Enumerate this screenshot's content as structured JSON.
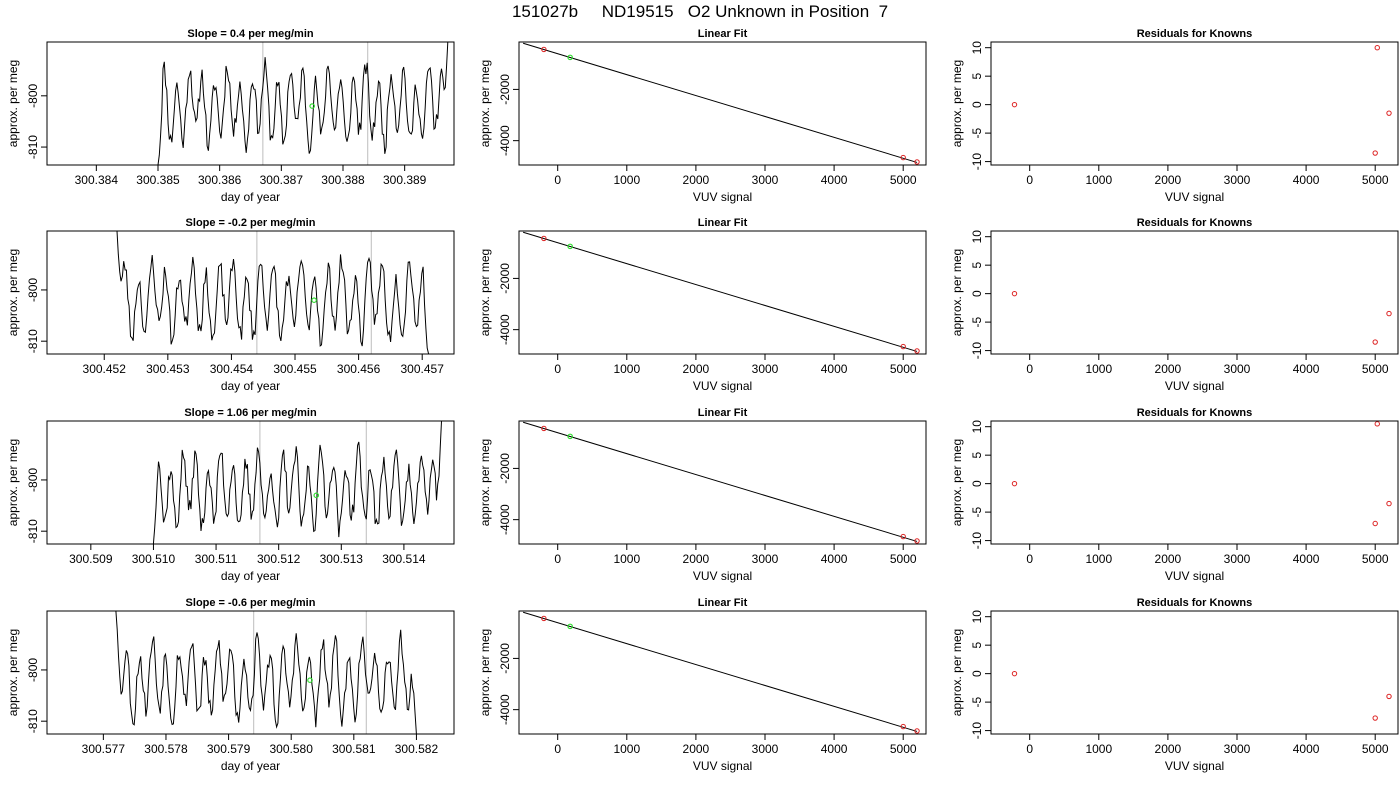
{
  "title": "151027b     ND19515   O2 Unknown in Position  7",
  "colors": {
    "trace": "#000000",
    "marker_green": "#33dd33",
    "marker_red": "#dd2222",
    "vline": "#c8c8c8",
    "fit_line": "#000000"
  },
  "chart_data": [
    {
      "type": "line",
      "row": 0,
      "col": 0,
      "title": "Slope =  0.4  per meg/min",
      "xlabel": "day of year",
      "ylabel": "approx. per meg",
      "xlim": [
        300.3832,
        300.3898
      ],
      "ylim": [
        -813.5,
        -789.5
      ],
      "xticks": [
        300.384,
        300.385,
        300.386,
        300.387,
        300.388,
        300.389
      ],
      "xtick_labels": [
        "300.384",
        "300.385",
        "300.386",
        "300.387",
        "300.388",
        "300.389"
      ],
      "yticks": [
        -800,
        -810
      ],
      "ytick_labels": [
        "-800",
        "-810"
      ],
      "trace_x_range": [
        300.385,
        300.3897
      ],
      "trace_start": -813.5,
      "trace_end": -789.5,
      "trace_seed": 11,
      "vlines": [
        300.3867,
        300.3884
      ],
      "marker": {
        "x": 300.3875,
        "y": -802.0
      }
    },
    {
      "type": "line",
      "row": 0,
      "col": 1,
      "title": "Linear Fit",
      "xlabel": "VUV signal",
      "ylabel": "approx. per meg",
      "xlim": [
        -560,
        5330
      ],
      "ylim": [
        -4950,
        -150
      ],
      "xticks": [
        0,
        1000,
        2000,
        3000,
        4000,
        5000
      ],
      "xtick_labels": [
        "0",
        "1000",
        "2000",
        "3000",
        "4000",
        "5000"
      ],
      "yticks": [
        -2000,
        -4000
      ],
      "ytick_labels": [
        "-2000",
        "-4000"
      ],
      "line": [
        [
          -500,
          -200
        ],
        [
          5200,
          -4850
        ]
      ],
      "points_red": [
        [
          -200,
          -440
        ],
        [
          5000,
          -4660
        ],
        [
          5200,
          -4830
        ]
      ],
      "points_green": [
        [
          180,
          -750
        ]
      ]
    },
    {
      "type": "scatter",
      "row": 0,
      "col": 2,
      "title": "Residuals for Knowns",
      "xlabel": "VUV signal",
      "ylabel": "approx. per meg",
      "xlim": [
        -560,
        5330
      ],
      "ylim": [
        -10.6,
        11
      ],
      "xticks": [
        0,
        1000,
        2000,
        3000,
        4000,
        5000
      ],
      "xtick_labels": [
        "0",
        "1000",
        "2000",
        "3000",
        "4000",
        "5000"
      ],
      "yticks": [
        10,
        5,
        0,
        -5,
        -10
      ],
      "ytick_labels": [
        "10",
        "5",
        "0",
        "-5",
        "-10"
      ],
      "points_red": [
        [
          -220,
          0
        ],
        [
          5030,
          10
        ],
        [
          5200,
          -1.5
        ],
        [
          5000,
          -8.5
        ]
      ]
    },
    {
      "type": "line",
      "row": 1,
      "col": 0,
      "title": "Slope =  -0.2  per meg/min",
      "xlabel": "day of year",
      "ylabel": "approx. per meg",
      "xlim": [
        300.4511,
        300.4575
      ],
      "ylim": [
        -812.5,
        -788.5
      ],
      "xticks": [
        300.452,
        300.453,
        300.454,
        300.455,
        300.456,
        300.457
      ],
      "xtick_labels": [
        "300.452",
        "300.453",
        "300.454",
        "300.455",
        "300.456",
        "300.457"
      ],
      "yticks": [
        -800,
        -810
      ],
      "ytick_labels": [
        "-800",
        "-810"
      ],
      "trace_x_range": [
        300.4522,
        300.4571
      ],
      "trace_start": -788.5,
      "trace_end": -812.5,
      "trace_seed": 23,
      "vlines": [
        300.4544,
        300.4562
      ],
      "marker": {
        "x": 300.4553,
        "y": -802.0
      }
    },
    {
      "type": "line",
      "row": 1,
      "col": 1,
      "title": "Linear Fit",
      "xlabel": "VUV signal",
      "ylabel": "approx. per meg",
      "xlim": [
        -560,
        5330
      ],
      "ylim": [
        -4950,
        -150
      ],
      "xticks": [
        0,
        1000,
        2000,
        3000,
        4000,
        5000
      ],
      "xtick_labels": [
        "0",
        "1000",
        "2000",
        "3000",
        "4000",
        "5000"
      ],
      "yticks": [
        -2000,
        -4000
      ],
      "ytick_labels": [
        "-2000",
        "-4000"
      ],
      "line": [
        [
          -500,
          -200
        ],
        [
          5200,
          -4850
        ]
      ],
      "points_red": [
        [
          -200,
          -440
        ],
        [
          5000,
          -4660
        ],
        [
          5200,
          -4830
        ]
      ],
      "points_green": [
        [
          180,
          -750
        ]
      ]
    },
    {
      "type": "scatter",
      "row": 1,
      "col": 2,
      "title": "Residuals for Knowns",
      "xlabel": "VUV signal",
      "ylabel": "approx. per meg",
      "xlim": [
        -560,
        5330
      ],
      "ylim": [
        -10.6,
        11
      ],
      "xticks": [
        0,
        1000,
        2000,
        3000,
        4000,
        5000
      ],
      "xtick_labels": [
        "0",
        "1000",
        "2000",
        "3000",
        "4000",
        "5000"
      ],
      "yticks": [
        10,
        5,
        0,
        -5,
        -10
      ],
      "ytick_labels": [
        "10",
        "5",
        "0",
        "-5",
        "-10"
      ],
      "points_red": [
        [
          -220,
          0
        ],
        [
          5200,
          -3.5
        ],
        [
          5000,
          -8.5
        ]
      ]
    },
    {
      "type": "line",
      "row": 2,
      "col": 0,
      "title": "Slope =  1.06  per meg/min",
      "xlabel": "day of year",
      "ylabel": "approx. per meg",
      "xlim": [
        300.5083,
        300.5148
      ],
      "ylim": [
        -812.5,
        -788.5
      ],
      "xticks": [
        300.509,
        300.51,
        300.511,
        300.512,
        300.513,
        300.514
      ],
      "xtick_labels": [
        "300.509",
        "300.510",
        "300.511",
        "300.512",
        "300.513",
        "300.514"
      ],
      "yticks": [
        -800,
        -810
      ],
      "ytick_labels": [
        "-800",
        "-810"
      ],
      "trace_x_range": [
        300.51,
        300.5146
      ],
      "trace_start": -812.5,
      "trace_end": -788.5,
      "trace_seed": 37,
      "vlines": [
        300.5117,
        300.5134
      ],
      "marker": {
        "x": 300.5126,
        "y": -803.0
      }
    },
    {
      "type": "line",
      "row": 2,
      "col": 1,
      "title": "Linear Fit",
      "xlabel": "VUV signal",
      "ylabel": "approx. per meg",
      "xlim": [
        -560,
        5330
      ],
      "ylim": [
        -4950,
        -150
      ],
      "xticks": [
        0,
        1000,
        2000,
        3000,
        4000,
        5000
      ],
      "xtick_labels": [
        "0",
        "1000",
        "2000",
        "3000",
        "4000",
        "5000"
      ],
      "yticks": [
        -2000,
        -4000
      ],
      "ytick_labels": [
        "-2000",
        "-4000"
      ],
      "line": [
        [
          -500,
          -200
        ],
        [
          5200,
          -4850
        ]
      ],
      "points_red": [
        [
          -200,
          -440
        ],
        [
          5000,
          -4660
        ],
        [
          5200,
          -4830
        ]
      ],
      "points_green": [
        [
          180,
          -750
        ]
      ]
    },
    {
      "type": "scatter",
      "row": 2,
      "col": 2,
      "title": "Residuals for Knowns",
      "xlabel": "VUV signal",
      "ylabel": "approx. per meg",
      "xlim": [
        -560,
        5330
      ],
      "ylim": [
        -10.6,
        11
      ],
      "xticks": [
        0,
        1000,
        2000,
        3000,
        4000,
        5000
      ],
      "xtick_labels": [
        "0",
        "1000",
        "2000",
        "3000",
        "4000",
        "5000"
      ],
      "yticks": [
        10,
        5,
        0,
        -5,
        -10
      ],
      "ytick_labels": [
        "10",
        "5",
        "0",
        "-5",
        "-10"
      ],
      "points_red": [
        [
          -220,
          0
        ],
        [
          5030,
          10.5
        ],
        [
          5200,
          -3.5
        ],
        [
          5000,
          -7
        ]
      ]
    },
    {
      "type": "line",
      "row": 3,
      "col": 0,
      "title": "Slope =  -0.6  per meg/min",
      "xlabel": "day of year",
      "ylabel": "approx. per meg",
      "xlim": [
        300.5761,
        300.5826
      ],
      "ylim": [
        -812.5,
        -788.5
      ],
      "xticks": [
        300.577,
        300.578,
        300.579,
        300.58,
        300.581,
        300.582
      ],
      "xtick_labels": [
        "300.577",
        "300.578",
        "300.579",
        "300.580",
        "300.581",
        "300.582"
      ],
      "yticks": [
        -800,
        -810
      ],
      "ytick_labels": [
        "-800",
        "-810"
      ],
      "trace_x_range": [
        300.5772,
        300.582
      ],
      "trace_start": -788.5,
      "trace_end": -812.5,
      "trace_seed": 53,
      "vlines": [
        300.5794,
        300.5812
      ],
      "marker": {
        "x": 300.5803,
        "y": -802.0
      }
    },
    {
      "type": "line",
      "row": 3,
      "col": 1,
      "title": "Linear Fit",
      "xlabel": "VUV signal",
      "ylabel": "approx. per meg",
      "xlim": [
        -560,
        5330
      ],
      "ylim": [
        -4950,
        -150
      ],
      "xticks": [
        0,
        1000,
        2000,
        3000,
        4000,
        5000
      ],
      "xtick_labels": [
        "0",
        "1000",
        "2000",
        "3000",
        "4000",
        "5000"
      ],
      "yticks": [
        -2000,
        -4000
      ],
      "ytick_labels": [
        "-2000",
        "-4000"
      ],
      "line": [
        [
          -500,
          -200
        ],
        [
          5200,
          -4850
        ]
      ],
      "points_red": [
        [
          -200,
          -440
        ],
        [
          5000,
          -4660
        ],
        [
          5200,
          -4830
        ]
      ],
      "points_green": [
        [
          180,
          -750
        ]
      ]
    },
    {
      "type": "scatter",
      "row": 3,
      "col": 2,
      "title": "Residuals for Knowns",
      "xlabel": "VUV signal",
      "ylabel": "approx. per meg",
      "xlim": [
        -560,
        5330
      ],
      "ylim": [
        -10.6,
        11
      ],
      "xticks": [
        0,
        1000,
        2000,
        3000,
        4000,
        5000
      ],
      "xtick_labels": [
        "0",
        "1000",
        "2000",
        "3000",
        "4000",
        "5000"
      ],
      "yticks": [
        10,
        5,
        0,
        -5,
        -10
      ],
      "ytick_labels": [
        "10",
        "5",
        "0",
        "-5",
        "-10"
      ],
      "points_red": [
        [
          -220,
          0
        ],
        [
          5200,
          -4
        ],
        [
          5000,
          -7.8
        ]
      ]
    }
  ]
}
